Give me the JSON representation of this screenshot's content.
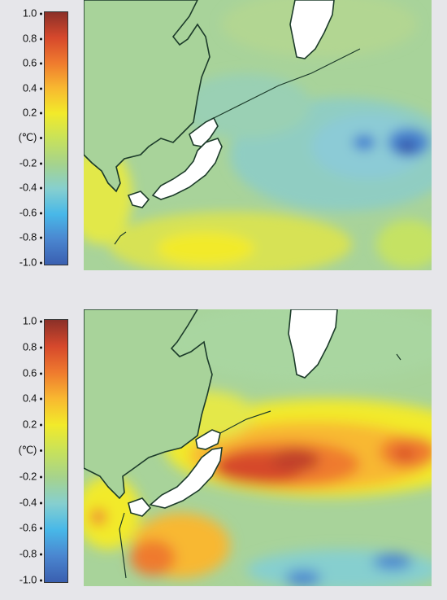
{
  "panels": [
    {
      "id": "top",
      "colorbar": {
        "ticks": [
          "1.0",
          "0.8",
          "0.6",
          "0.4",
          "0.2",
          "(℃)",
          "-0.2",
          "-0.4",
          "-0.6",
          "-0.8",
          "-1.0"
        ],
        "range": [
          -1.0,
          1.0
        ],
        "colors": [
          "#3a5fb0",
          "#4a86d0",
          "#48b8e8",
          "#86cfcf",
          "#a6d38c",
          "#c8e25a",
          "#f2ea2a",
          "#f8b830",
          "#ef7a2e",
          "#d6482c",
          "#8b3028"
        ]
      }
    },
    {
      "id": "bottom",
      "colorbar": {
        "ticks": [
          "1.0",
          "0.8",
          "0.6",
          "0.4",
          "0.2",
          "(℃)",
          "-0.2",
          "-0.4",
          "-0.6",
          "-0.8",
          "-1.0"
        ],
        "range": [
          -1.0,
          1.0
        ],
        "colors": [
          "#3a5fb0",
          "#4a86d0",
          "#48b8e8",
          "#86cfcf",
          "#a6d38c",
          "#c8e25a",
          "#f2ea2a",
          "#f8b830",
          "#ef7a2e",
          "#d6482c",
          "#8b3028"
        ]
      }
    }
  ]
}
